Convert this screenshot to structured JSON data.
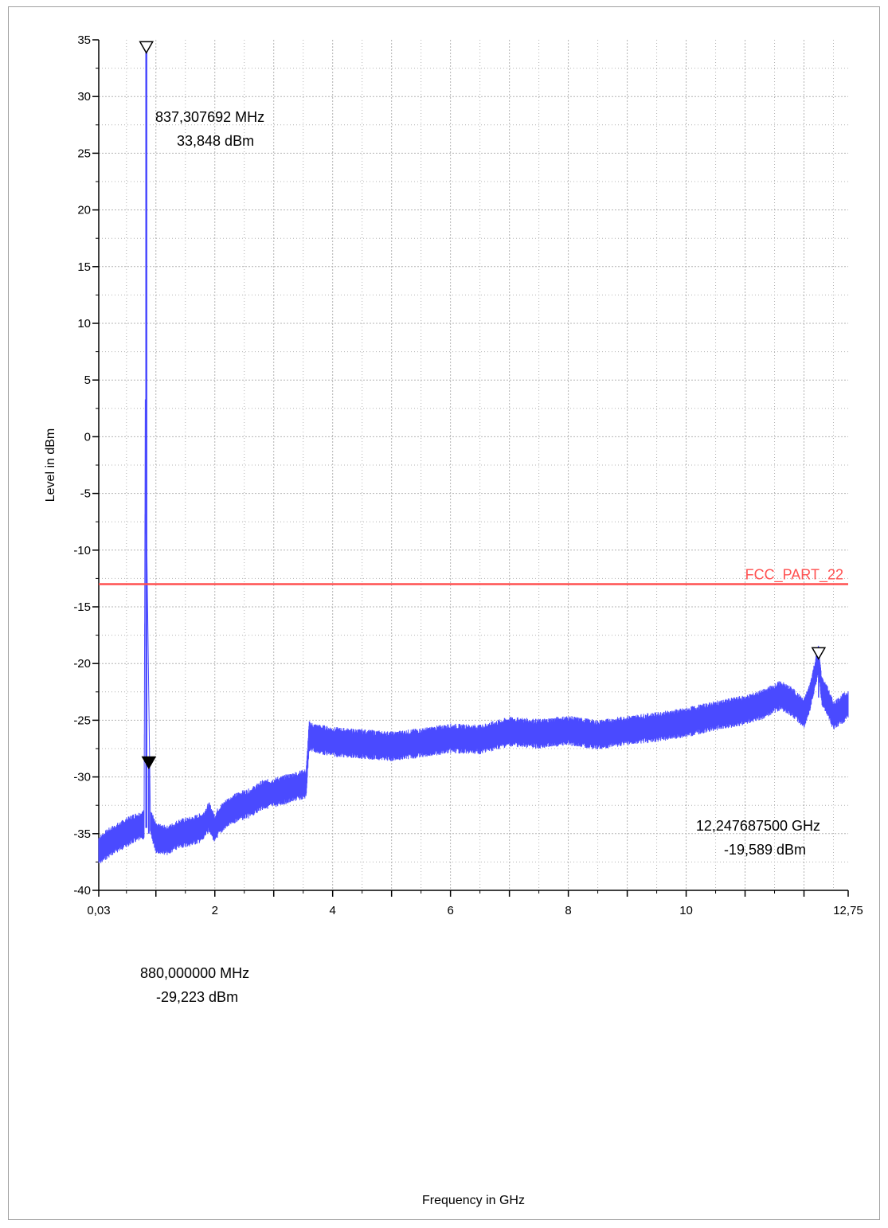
{
  "chart_data": {
    "type": "line",
    "xlabel": "Frequency in GHz",
    "ylabel": "Level in dBm",
    "xlim": [
      0.03,
      12.75
    ],
    "ylim": [
      -40,
      35
    ],
    "x_ticks": [
      {
        "value": 0.03,
        "label": "0,03"
      },
      {
        "value": 2,
        "label": "2"
      },
      {
        "value": 4,
        "label": "4"
      },
      {
        "value": 6,
        "label": "6"
      },
      {
        "value": 8,
        "label": "8"
      },
      {
        "value": 10,
        "label": "10"
      },
      {
        "value": 12.75,
        "label": "12,75"
      }
    ],
    "x_grid": [
      1,
      2,
      3,
      4,
      5,
      6,
      7,
      8,
      9,
      10,
      11,
      12
    ],
    "y_ticks": [
      35,
      30,
      25,
      20,
      15,
      10,
      5,
      0,
      -5,
      -10,
      -15,
      -20,
      -25,
      -30,
      -35,
      -40
    ],
    "grid": true,
    "colors": {
      "trace": "#4a4aff",
      "limit": "#ff5050",
      "grid": "#b4b4b4"
    },
    "limit_line": {
      "name": "FCC_PART_22",
      "value": -13
    },
    "series": [
      {
        "x": [
          0.03,
          0.2,
          0.4,
          0.6,
          0.8,
          0.837,
          0.84,
          0.86,
          0.88,
          0.9,
          1.0,
          1.2,
          1.4,
          1.6,
          1.8,
          1.9,
          2.0,
          2.05,
          2.2,
          2.4,
          2.6,
          2.8,
          3.0,
          3.2,
          3.4,
          3.55,
          3.6,
          3.7,
          4.0,
          4.5,
          5.0,
          5.5,
          6.0,
          6.5,
          7.0,
          7.5,
          8.0,
          8.5,
          9.0,
          9.5,
          10.0,
          10.5,
          11.0,
          11.3,
          11.6,
          11.8,
          12.0,
          12.1,
          12.247,
          12.3,
          12.4,
          12.5,
          12.6,
          12.75
        ],
        "y": [
          -36.5,
          -35.8,
          -35.2,
          -34.6,
          -34.2,
          33.848,
          -20,
          -33.6,
          -29.223,
          -33.8,
          -35.4,
          -35.6,
          -35.0,
          -34.8,
          -34.4,
          -33.5,
          -34.6,
          -34.0,
          -33.2,
          -32.6,
          -32.3,
          -31.6,
          -31.4,
          -31.1,
          -30.8,
          -30.6,
          -26.4,
          -26.6,
          -26.9,
          -27.1,
          -27.3,
          -27.0,
          -26.6,
          -26.7,
          -26.0,
          -26.2,
          -25.9,
          -26.3,
          -25.9,
          -25.6,
          -25.2,
          -24.6,
          -24.1,
          -23.6,
          -22.8,
          -23.4,
          -24.4,
          -23.0,
          -19.589,
          -22.4,
          -23.3,
          -24.6,
          -24.2,
          -23.6
        ]
      }
    ],
    "markers": [
      {
        "x": 0.837307692,
        "y": 33.848,
        "label_freq": "837,307692 MHz",
        "label_level": "33,848 dBm",
        "filled": false
      },
      {
        "x": 0.88,
        "y": -29.223,
        "label_freq": "880,000000 MHz",
        "label_level": "-29,223 dBm",
        "filled": true
      },
      {
        "x": 12.2476875,
        "y": -19.589,
        "label_freq": "12,247687500 GHz",
        "label_level": "-19,589 dBm",
        "filled": false
      }
    ]
  }
}
